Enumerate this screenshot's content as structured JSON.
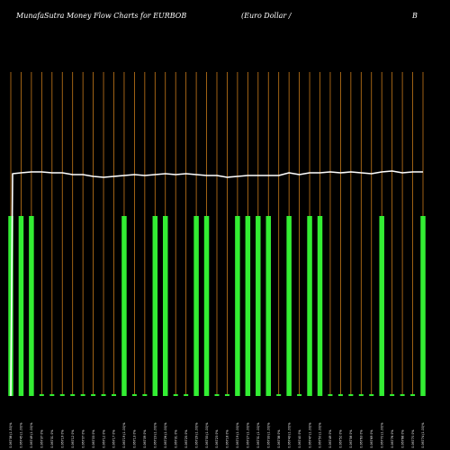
{
  "chart_data": {
    "type": "bar",
    "title": "MunafaSutra  Money Flow  Charts for EURBOB",
    "subtitle": "(Euro  Dollar /",
    "title_right": "B",
    "colors": {
      "background": "#000000",
      "gridline": "#c77a1a",
      "bar": "#33ee33",
      "line": "#ffffff",
      "text": "#ffffff"
    },
    "ylim": [
      0,
      360
    ],
    "categories": [
      "0.06738 (1.50)%",
      "0.06745 (1.00)%",
      "0.06749 (1.00)%",
      "0.06737 0%",
      "0.06731 0%",
      "0.06719 0%",
      "0.06712 0%",
      "0.06707 0%",
      "0.06703 0%",
      "0.06712 0%",
      "0.06717 0%",
      "0.06719 (1.00)%",
      "0.06713 0%",
      "0.06709 0%",
      "0.06723 (1.00)%",
      "0.06726 (1.00)%",
      "0.06731 0%",
      "0.06725 0%",
      "0.06729 (1.00)%",
      "0.06733 (1.00)%",
      "0.06723 0%",
      "0.06718 0%",
      "0.06719 (1.00)%",
      "0.06727 (1.00)%",
      "0.06731 (1.00)%",
      "0.06733 (1.00)%",
      "0.06738 0%",
      "0.06743 (1.00)%",
      "0.06740 0%",
      "0.06747 (1.00)%",
      "0.06750 (1.00)%",
      "0.06749 0%",
      "0.06752 0%",
      "0.06758 0%",
      "0.06763 0%",
      "0.06769 0%",
      "0.06772 (1.00)%",
      "0.06776 0%",
      "0.06768 0%",
      "0.06770 0%",
      "0.06774 (1.00)%"
    ],
    "series": [
      {
        "name": "",
        "type": "bar",
        "values": [
          200,
          200,
          200,
          2,
          2,
          2,
          2,
          2,
          2,
          2,
          2,
          200,
          2,
          2,
          200,
          200,
          2,
          2,
          200,
          200,
          2,
          2,
          200,
          200,
          200,
          200,
          2,
          200,
          2,
          200,
          200,
          2,
          2,
          2,
          2,
          2,
          200,
          2,
          2,
          2,
          200
        ]
      },
      {
        "name": "",
        "type": "line",
        "values": [
          247,
          248,
          249,
          249,
          248,
          248,
          246,
          246,
          244,
          243,
          244,
          245,
          246,
          245,
          246,
          247,
          246,
          247,
          246,
          245,
          245,
          243,
          244,
          245,
          245,
          245,
          245,
          248,
          246,
          248,
          248,
          249,
          248,
          249,
          248,
          247,
          249,
          250,
          248,
          249,
          249
        ],
        "first_value": 0
      }
    ],
    "grid": true,
    "gridlines": "vertical",
    "legend": "none"
  }
}
